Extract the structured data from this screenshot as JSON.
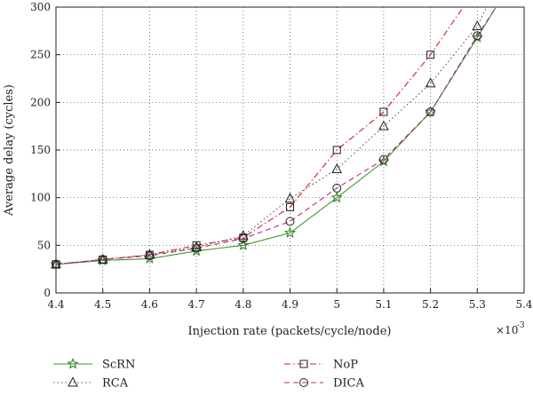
{
  "chart_data": {
    "type": "line",
    "title": "",
    "xlabel": "Injection rate (packets/cycle/node)",
    "ylabel": "Average delay (cycles)",
    "x_multiplier": "×10",
    "x_multiplier_exp": "-3",
    "xlim": [
      4.4,
      5.4
    ],
    "ylim": [
      0,
      300
    ],
    "x_ticks": [
      "4.4",
      "4.5",
      "4.6",
      "4.7",
      "4.8",
      "4.9",
      "5",
      "5.1",
      "5.2",
      "5.3",
      "5.4"
    ],
    "y_ticks": [
      "0",
      "50",
      "100",
      "150",
      "200",
      "250",
      "300"
    ],
    "grid": true,
    "legend_position": "bottom",
    "series": [
      {
        "name": "ScRN",
        "color": "#3a9a2a",
        "dash": "solid",
        "marker": "star",
        "points": [
          [
            4.4,
            30
          ],
          [
            4.5,
            34
          ],
          [
            4.6,
            36
          ],
          [
            4.7,
            44
          ],
          [
            4.8,
            50
          ],
          [
            4.9,
            63
          ],
          [
            5.0,
            100
          ],
          [
            5.1,
            138
          ],
          [
            5.2,
            190
          ],
          [
            5.3,
            268
          ]
        ],
        "end": [
          5.34,
          300
        ]
      },
      {
        "name": "NoP",
        "color": "#d22020",
        "dash": "dashdot",
        "marker": "square",
        "points": [
          [
            4.4,
            30
          ],
          [
            4.5,
            35
          ],
          [
            4.6,
            40
          ],
          [
            4.7,
            50
          ],
          [
            4.8,
            58
          ],
          [
            4.9,
            90
          ],
          [
            5.0,
            150
          ],
          [
            5.1,
            190
          ],
          [
            5.2,
            250
          ]
        ],
        "end": [
          5.27,
          300
        ]
      },
      {
        "name": "RCA",
        "color": "#555555",
        "dash": "dotted",
        "marker": "triangle",
        "points": [
          [
            4.4,
            30
          ],
          [
            4.5,
            35
          ],
          [
            4.6,
            40
          ],
          [
            4.7,
            48
          ],
          [
            4.8,
            60
          ],
          [
            4.9,
            99
          ],
          [
            5.0,
            130
          ],
          [
            5.1,
            175
          ],
          [
            5.2,
            220
          ],
          [
            5.3,
            280
          ]
        ],
        "end": [
          5.32,
          300
        ]
      },
      {
        "name": "DICA",
        "color": "#c0208a",
        "dash": "dashed",
        "marker": "circle",
        "points": [
          [
            4.4,
            30
          ],
          [
            4.5,
            35
          ],
          [
            4.6,
            39
          ],
          [
            4.7,
            47
          ],
          [
            4.8,
            57
          ],
          [
            4.9,
            75
          ],
          [
            5.0,
            110
          ],
          [
            5.1,
            140
          ],
          [
            5.2,
            190
          ],
          [
            5.3,
            270
          ]
        ],
        "end": [
          5.34,
          300
        ]
      }
    ]
  }
}
